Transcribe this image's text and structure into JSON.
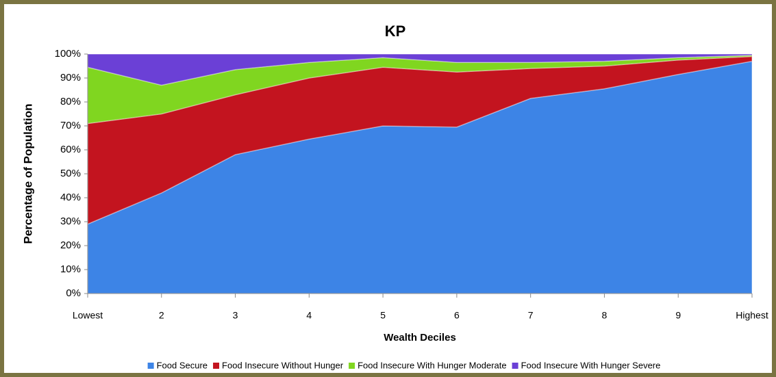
{
  "chart_data": {
    "type": "stacked_area",
    "title": "KP",
    "xlabel": "Wealth Deciles",
    "ylabel": "Percentage of Population",
    "categories": [
      "Lowest",
      "2",
      "3",
      "4",
      "5",
      "6",
      "7",
      "8",
      "9",
      "Highest"
    ],
    "series": [
      {
        "name": "Food Secure",
        "color": "#3d84e6",
        "values": [
          29,
          42,
          58,
          64.5,
          70,
          69.5,
          81.5,
          85.5,
          91.5,
          97
        ]
      },
      {
        "name": "Food Insecure Without Hunger",
        "color": "#c3141f",
        "values": [
          42,
          33,
          25,
          25.5,
          24.5,
          23,
          12.5,
          9.5,
          6,
          2
        ]
      },
      {
        "name": "Food Insecure With Hunger Moderate",
        "color": "#80d620",
        "values": [
          23.5,
          12,
          10.5,
          6.5,
          4,
          4,
          2.5,
          2,
          1,
          0.5
        ]
      },
      {
        "name": "Food Insecure With Hunger Severe",
        "color": "#6b40d6",
        "values": [
          5.5,
          13,
          6.5,
          3.5,
          1.5,
          3.5,
          3.5,
          3,
          1.5,
          0.5
        ]
      }
    ],
    "ylim": [
      0,
      100
    ],
    "yticks": [
      {
        "value": 0,
        "label": "0%"
      },
      {
        "value": 10,
        "label": "10%"
      },
      {
        "value": 20,
        "label": "20%"
      },
      {
        "value": 30,
        "label": "30%"
      },
      {
        "value": 40,
        "label": "40%"
      },
      {
        "value": 50,
        "label": "50%"
      },
      {
        "value": 60,
        "label": "60%"
      },
      {
        "value": 70,
        "label": "70%"
      },
      {
        "value": 80,
        "label": "80%"
      },
      {
        "value": 90,
        "label": "90%"
      },
      {
        "value": 100,
        "label": "100%"
      }
    ],
    "legend": "bottom"
  }
}
